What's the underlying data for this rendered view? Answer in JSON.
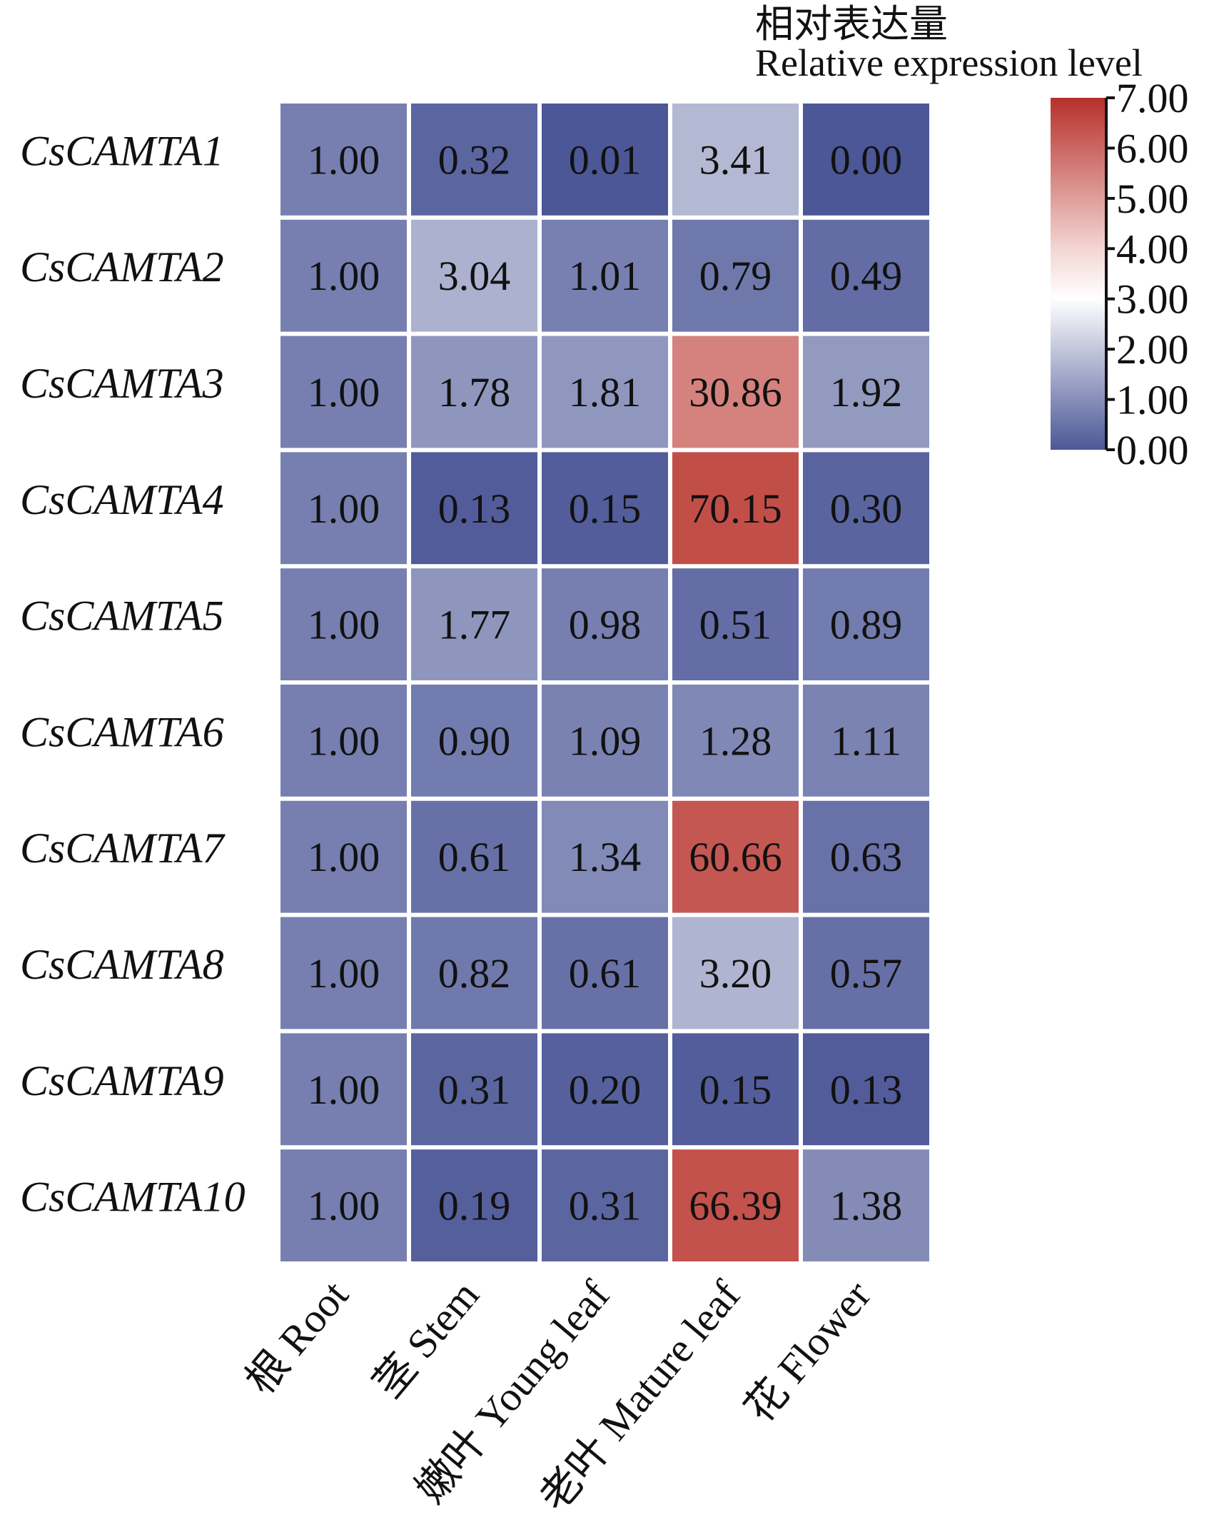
{
  "chart_data": {
    "type": "heatmap",
    "title": "",
    "legend_title_cn": "相对表达量",
    "legend_title_en": "Relative expression level",
    "legend_placement": "top-right",
    "colorbar": {
      "min": 0,
      "max": 7,
      "ticks": [
        "0.00",
        "1.00",
        "2.00",
        "3.00",
        "4.00",
        "5.00",
        "6.00",
        "7.00"
      ],
      "low_color": "#4c5797",
      "mid_color": "#ffffff",
      "high_color": "#b7302a"
    },
    "columns": [
      "根 Root",
      "茎 Stem",
      "嫩叶 Young leaf",
      "老叶 Mature leaf",
      "花 Flower"
    ],
    "rows": [
      "CsCAMTA1",
      "CsCAMTA2",
      "CsCAMTA3",
      "CsCAMTA4",
      "CsCAMTA5",
      "CsCAMTA6",
      "CsCAMTA7",
      "CsCAMTA8",
      "CsCAMTA9",
      "CsCAMTA10"
    ],
    "values": [
      [
        "1.00",
        "0.32",
        "0.01",
        "3.41",
        "0.00"
      ],
      [
        "1.00",
        "3.04",
        "1.01",
        "0.79",
        "0.49"
      ],
      [
        "1.00",
        "1.78",
        "1.81",
        "30.86",
        "1.92"
      ],
      [
        "1.00",
        "0.13",
        "0.15",
        "70.15",
        "0.30"
      ],
      [
        "1.00",
        "1.77",
        "0.98",
        "0.51",
        "0.89"
      ],
      [
        "1.00",
        "0.90",
        "1.09",
        "1.28",
        "1.11"
      ],
      [
        "1.00",
        "0.61",
        "1.34",
        "60.66",
        "0.63"
      ],
      [
        "1.00",
        "0.82",
        "0.61",
        "3.20",
        "0.57"
      ],
      [
        "1.00",
        "0.31",
        "0.20",
        "0.15",
        "0.13"
      ],
      [
        "1.00",
        "0.19",
        "0.31",
        "66.39",
        "1.38"
      ]
    ]
  }
}
